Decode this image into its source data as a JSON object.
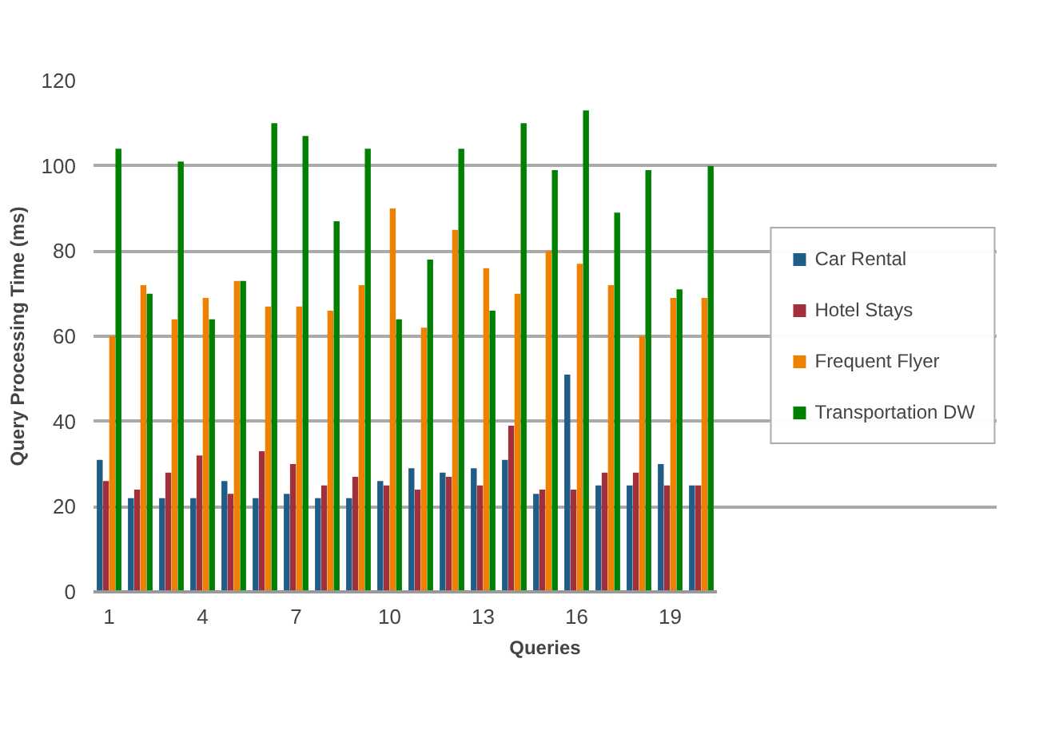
{
  "chart_data": {
    "type": "bar",
    "xlabel": "Queries",
    "ylabel": "Query Processing Time (ms)",
    "categories": [
      "1",
      null,
      null,
      "4",
      null,
      null,
      "7",
      null,
      null,
      "10",
      null,
      null,
      "13",
      null,
      null,
      "16",
      null,
      null,
      "19",
      null
    ],
    "series": [
      {
        "name": "Car Rental",
        "color": "#1f5c87",
        "values": [
          31,
          22,
          22,
          22,
          26,
          22,
          23,
          22,
          22,
          26,
          29,
          28,
          29,
          31,
          23,
          51,
          25,
          25,
          30,
          25
        ]
      },
      {
        "name": "Hotel Stays",
        "color": "#a2303a",
        "values": [
          26,
          24,
          28,
          32,
          23,
          33,
          30,
          25,
          27,
          25,
          24,
          27,
          25,
          39,
          24,
          24,
          28,
          28,
          25,
          25
        ]
      },
      {
        "name": "Frequent Flyer",
        "color": "#f08000",
        "values": [
          60,
          72,
          64,
          69,
          73,
          67,
          67,
          66,
          72,
          90,
          62,
          85,
          76,
          70,
          80,
          77,
          72,
          60,
          69,
          69
        ]
      },
      {
        "name": "Transportation DW",
        "color": "#008000",
        "values": [
          104,
          70,
          101,
          64,
          73,
          110,
          107,
          87,
          104,
          64,
          78,
          104,
          66,
          110,
          99,
          113,
          89,
          99,
          71,
          100
        ]
      }
    ],
    "ylim": [
      0,
      120
    ],
    "yticks": [
      0,
      20,
      40,
      60,
      80,
      100,
      120
    ],
    "grid": "y",
    "legend": "right"
  }
}
